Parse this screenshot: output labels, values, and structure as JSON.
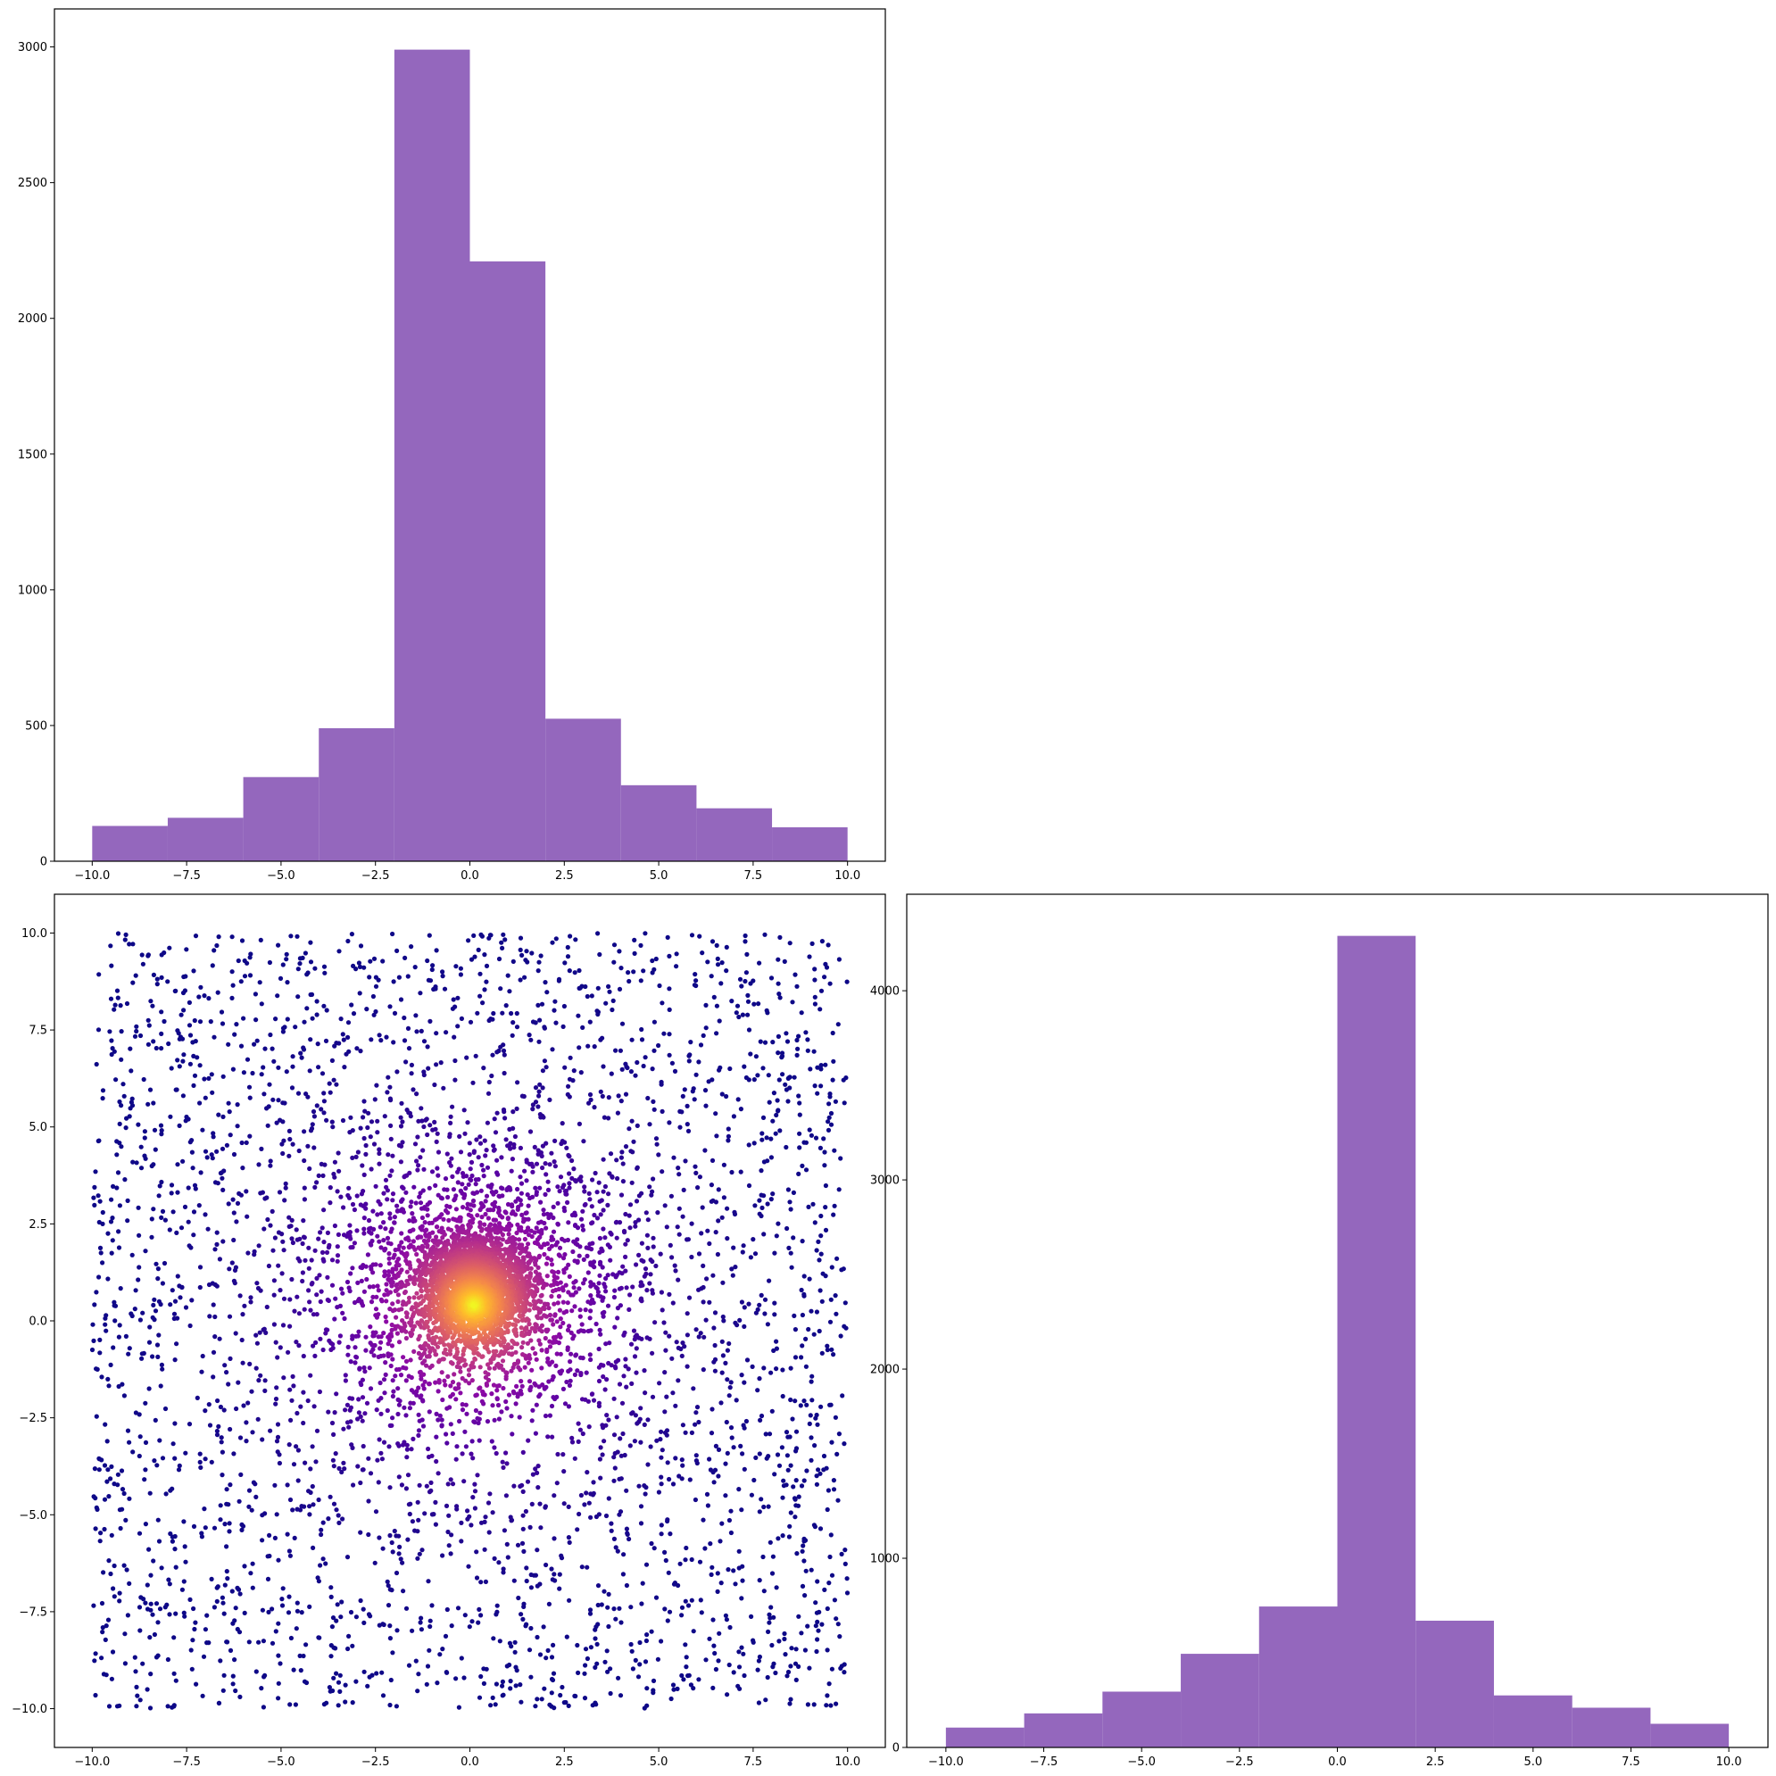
{
  "colors": {
    "bar": "#9467bd",
    "axis": "#000000",
    "background": "#ffffff",
    "colormap": "plasma"
  },
  "chart_data": [
    {
      "id": "top-histogram",
      "type": "bar",
      "title": "",
      "xlabel": "",
      "ylabel": "",
      "bin_edges": [
        -10,
        -8,
        -6,
        -4,
        -2,
        0,
        2,
        4,
        6,
        8,
        10
      ],
      "values": [
        130,
        160,
        310,
        490,
        2990,
        2210,
        525,
        280,
        195,
        125
      ],
      "xlim": [
        -11,
        11
      ],
      "ylim": [
        0,
        3140
      ],
      "x_ticks": [
        -10,
        -7.5,
        -5,
        -2.5,
        0,
        2.5,
        5,
        7.5,
        10
      ],
      "x_tick_labels": [
        "−10.0",
        "−7.5",
        "−5.0",
        "−2.5",
        "0.0",
        "2.5",
        "5.0",
        "7.5",
        "10.0"
      ],
      "y_ticks": [
        0,
        500,
        1000,
        1500,
        2000,
        2500,
        3000
      ],
      "y_tick_labels": [
        "0",
        "500",
        "1000",
        "1500",
        "2000",
        "2500",
        "3000"
      ],
      "grid": false
    },
    {
      "id": "scatter-plot",
      "type": "scatter",
      "title": "",
      "xlabel": "",
      "ylabel": "",
      "description_of_points": "about 8000 points; a dense cluster centred near (0, 0.5) plus points spread uniformly over [-10,10]x[-10,10]; colored by local density with the plasma colormap (dark purple = sparse, yellow = dense)",
      "center": [
        0.1,
        0.6
      ],
      "n_cluster": 5000,
      "n_uniform": 3000,
      "xlim": [
        -11,
        11
      ],
      "ylim": [
        -11,
        11
      ],
      "x_ticks": [
        -10,
        -7.5,
        -5,
        -2.5,
        0,
        2.5,
        5,
        7.5,
        10
      ],
      "x_tick_labels": [
        "−10.0",
        "−7.5",
        "−5.0",
        "−2.5",
        "0.0",
        "2.5",
        "5.0",
        "7.5",
        "10.0"
      ],
      "y_ticks": [
        -10,
        -7.5,
        -5,
        -2.5,
        0,
        2.5,
        5,
        7.5,
        10
      ],
      "y_tick_labels": [
        "−10.0",
        "−7.5",
        "−5.0",
        "−2.5",
        "0.0",
        "2.5",
        "5.0",
        "7.5",
        "10.0"
      ],
      "grid": false
    },
    {
      "id": "bottom-right-histogram",
      "type": "bar",
      "title": "",
      "xlabel": "",
      "ylabel": "",
      "bin_edges": [
        -10,
        -8,
        -6,
        -4,
        -2,
        0,
        2,
        4,
        6,
        8,
        10
      ],
      "values": [
        105,
        180,
        295,
        495,
        745,
        4290,
        670,
        275,
        210,
        125
      ],
      "xlim": [
        -11,
        11
      ],
      "ylim": [
        0,
        4510
      ],
      "x_ticks": [
        -10,
        -7.5,
        -5,
        -2.5,
        0,
        2.5,
        5,
        7.5,
        10
      ],
      "x_tick_labels": [
        "−10.0",
        "−7.5",
        "−5.0",
        "−2.5",
        "0.0",
        "2.5",
        "5.0",
        "7.5",
        "10.0"
      ],
      "y_ticks": [
        0,
        1000,
        2000,
        3000,
        4000
      ],
      "y_tick_labels": [
        "0",
        "1000",
        "2000",
        "3000",
        "4000"
      ],
      "grid": false
    }
  ]
}
